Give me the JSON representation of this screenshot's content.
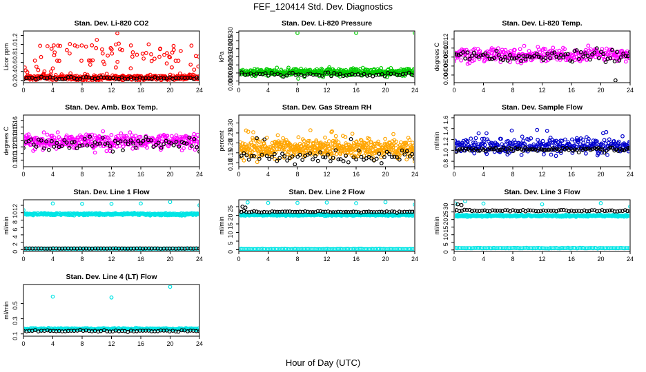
{
  "figure": {
    "title": "FEF_120414  Std. Dev. Diagnostics",
    "xlabel": "Hour of Day (UTC)"
  },
  "chart_data": [
    {
      "type": "scatter",
      "title": "Stan. Dev. Li-820 CO2",
      "ylabel": "Licor ppm",
      "xlim": [
        0,
        24
      ],
      "xticks": [
        0,
        4,
        8,
        12,
        16,
        20,
        24
      ],
      "ylim": [
        0.15,
        1.3
      ],
      "yticks": [
        "0.2",
        "0.4",
        "0.6",
        "0.8",
        "1.0",
        "1.2"
      ],
      "series": [
        {
          "color": "#ff0000",
          "gen": {
            "n": 420,
            "base": 0.26,
            "noise": 0.06,
            "spikeFrac": 0.22,
            "spikeMax": 0.75,
            "seed": 11
          },
          "points": [
            [
              12.8,
              1.25
            ],
            [
              10.0,
              1.1
            ],
            [
              12.6,
              1.0
            ],
            [
              13.0,
              1.02
            ],
            [
              7.0,
              0.98
            ],
            [
              9.9,
              0.92
            ],
            [
              11.9,
              0.92
            ],
            [
              6.3,
              0.8
            ],
            [
              2.4,
              0.72
            ],
            [
              10.8,
              0.8
            ]
          ]
        },
        {
          "color": "#000000",
          "gen": {
            "n": 60,
            "base": 0.25,
            "noise": 0.03,
            "spikeFrac": 0,
            "spikeMax": 0,
            "seed": 12
          }
        }
      ]
    },
    {
      "type": "scatter",
      "title": "Stan. Dev. Li-820 Pressure",
      "ylabel": "kPa",
      "xlim": [
        0,
        24
      ],
      "xticks": [
        0,
        4,
        8,
        12,
        16,
        20,
        24
      ],
      "ylim": [
        -0.001,
        0.031
      ],
      "yticks": [
        "0.000",
        "0.005",
        "0.010",
        "0.015",
        "0.020",
        "0.025",
        "0.030"
      ],
      "series": [
        {
          "color": "#00cc00",
          "gen": {
            "n": 420,
            "base": 0.0055,
            "noise": 0.0022,
            "spikeFrac": 0,
            "spikeMax": 0,
            "seed": 21
          },
          "points": [
            [
              8.0,
              0.0298
            ],
            [
              16.0,
              0.0298
            ],
            [
              24.0,
              0.0298
            ],
            [
              8.1,
              0.0015
            ]
          ]
        },
        {
          "color": "#000000",
          "gen": {
            "n": 60,
            "base": 0.0042,
            "noise": 0.0011,
            "spikeFrac": 0,
            "spikeMax": 0,
            "seed": 22
          }
        }
      ]
    },
    {
      "type": "scatter",
      "title": "Stan. Dev. Li-820 Temp.",
      "ylabel": "degrees C",
      "xlim": [
        0,
        24
      ],
      "xticks": [
        0,
        4,
        8,
        12,
        16,
        20,
        24
      ],
      "ylim": [
        0.0023,
        0.0138
      ],
      "yticks": [
        "0.004",
        "0.006",
        "0.008",
        "0.010",
        "0.012"
      ],
      "series": [
        {
          "color": "#ff00ff",
          "gen": {
            "n": 300,
            "base": 0.0085,
            "noise": 0.0016,
            "spikeFrac": 0,
            "spikeMax": 0,
            "seed": 31
          }
        },
        {
          "color": "#000000",
          "gen": {
            "n": 80,
            "base": 0.0082,
            "noise": 0.0014,
            "spikeFrac": 0,
            "spikeMax": 0,
            "seed": 32
          },
          "points": [
            [
              22.0,
              0.0028
            ]
          ]
        }
      ]
    },
    {
      "type": "scatter",
      "title": "Stan. Dev. Amb. Box Temp.",
      "ylabel": "degrees C",
      "xlim": [
        0,
        24
      ],
      "xticks": [
        0,
        4,
        8,
        12,
        16,
        20,
        24
      ],
      "ylim": [
        0.09,
        0.168
      ],
      "yticks": [
        "0.10",
        "0.11",
        "0.12",
        "0.13",
        "0.14",
        "0.15",
        "0.16"
      ],
      "series": [
        {
          "color": "#ff00ff",
          "gen": {
            "n": 380,
            "base": 0.128,
            "noise": 0.011,
            "spikeFrac": 0,
            "spikeMax": 0,
            "seed": 41
          }
        },
        {
          "color": "#000000",
          "gen": {
            "n": 70,
            "base": 0.124,
            "noise": 0.009,
            "spikeFrac": 0,
            "spikeMax": 0,
            "seed": 42
          }
        }
      ]
    },
    {
      "type": "scatter",
      "title": "Stan. Dev. Gas Stream RH",
      "ylabel": "percent",
      "xlim": [
        0,
        24
      ],
      "xticks": [
        0,
        4,
        8,
        12,
        16,
        20,
        24
      ],
      "ylim": [
        0.08,
        0.34
      ],
      "yticks": [
        "0.10",
        "0.15",
        "0.20",
        "0.25",
        "0.30"
      ],
      "series": [
        {
          "color": "#ffa500",
          "gen": {
            "n": 520,
            "base": 0.17,
            "noise": 0.045,
            "spikeFrac": 0.05,
            "spikeMax": 0.1,
            "seed": 51
          }
        },
        {
          "color": "#000000",
          "gen": {
            "n": 70,
            "base": 0.13,
            "noise": 0.03,
            "spikeFrac": 0.1,
            "spikeMax": 0.12,
            "seed": 52
          }
        }
      ]
    },
    {
      "type": "scatter",
      "title": "Stan. Dev. Sample Flow",
      "ylabel": "ml/min",
      "xlim": [
        0,
        24
      ],
      "xticks": [
        0,
        4,
        8,
        12,
        16,
        20,
        24
      ],
      "ylim": [
        0.7,
        1.65
      ],
      "yticks": [
        "0.8",
        "1.0",
        "1.2",
        "1.4",
        "1.6"
      ],
      "series": [
        {
          "color": "#0000cc",
          "gen": {
            "n": 340,
            "base": 1.08,
            "noise": 0.13,
            "spikeFrac": 0.06,
            "spikeMax": 0.35,
            "seed": 61
          }
        },
        {
          "color": "#000000",
          "gen": {
            "n": 90,
            "base": 1.02,
            "noise": 0.04,
            "spikeFrac": 0,
            "spikeMax": 0,
            "seed": 62
          }
        }
      ]
    },
    {
      "type": "scatter",
      "title": "Stan. Dev. Line 1 Flow",
      "ylabel": "ml/min",
      "xlim": [
        0,
        24
      ],
      "xticks": [
        0,
        4,
        8,
        12,
        16,
        20,
        24
      ],
      "ylim": [
        -0.5,
        13.5
      ],
      "yticks": [
        "0",
        "2",
        "4",
        "6",
        "8",
        "10",
        "12"
      ],
      "series": [
        {
          "color": "#00e5e5",
          "gen": {
            "n": 320,
            "base": 9.6,
            "noise": 0.3,
            "spikeFrac": 0,
            "spikeMax": 0,
            "seed": 71
          },
          "points": [
            [
              4.0,
              12.5
            ],
            [
              8.0,
              12.4
            ],
            [
              12.0,
              12.4
            ],
            [
              16.0,
              12.5
            ],
            [
              20.0,
              12.9
            ],
            [
              24.0,
              12.0
            ],
            [
              0.0,
              10.7
            ]
          ]
        },
        {
          "color": "#00e5e5",
          "gen": {
            "n": 120,
            "base": 0.25,
            "noise": 0.05,
            "spikeFrac": 0,
            "spikeMax": 0,
            "seed": 72
          }
        },
        {
          "color": "#000000",
          "gen": {
            "n": 60,
            "base": 0.3,
            "noise": 0.04,
            "spikeFrac": 0,
            "spikeMax": 0,
            "seed": 73
          }
        }
      ]
    },
    {
      "type": "scatter",
      "title": "Stan. Dev. Line 2 Flow",
      "ylabel": "ml/min",
      "xlim": [
        0,
        24
      ],
      "xticks": [
        0,
        4,
        8,
        12,
        16,
        20,
        24
      ],
      "ylim": [
        -1,
        29
      ],
      "yticks": [
        "0",
        "5",
        "10",
        "15",
        "20",
        "25"
      ],
      "series": [
        {
          "color": "#00e5e5",
          "gen": {
            "n": 320,
            "base": 20.2,
            "noise": 0.5,
            "spikeFrac": 0,
            "spikeMax": 0,
            "seed": 81
          },
          "points": [
            [
              1.2,
              27.5
            ],
            [
              4.0,
              27.2
            ],
            [
              8.0,
              27.2
            ],
            [
              12.0,
              27.4
            ],
            [
              16.0,
              27.0
            ],
            [
              20.0,
              27.6
            ],
            [
              24.0,
              26.2
            ]
          ]
        },
        {
          "color": "#00e5e5",
          "gen": {
            "n": 120,
            "base": 0.4,
            "noise": 0.1,
            "spikeFrac": 0,
            "spikeMax": 0,
            "seed": 82
          }
        },
        {
          "color": "#000000",
          "gen": {
            "n": 70,
            "base": 22.0,
            "noise": 0.4,
            "spikeFrac": 0,
            "spikeMax": 0,
            "seed": 83
          },
          "points": [
            [
              0.5,
              25.0
            ],
            [
              0.9,
              24.5
            ]
          ]
        }
      ]
    },
    {
      "type": "scatter",
      "title": "Stan. Dev. Line 3 Flow",
      "ylabel": "ml/min",
      "xlim": [
        0,
        24
      ],
      "xticks": [
        0,
        4,
        8,
        12,
        16,
        20,
        24
      ],
      "ylim": [
        -1,
        33
      ],
      "yticks": [
        "0",
        "5",
        "10",
        "15",
        "20",
        "25",
        "30"
      ],
      "series": [
        {
          "color": "#00e5e5",
          "gen": {
            "n": 320,
            "base": 22.5,
            "noise": 0.6,
            "spikeFrac": 0,
            "spikeMax": 0,
            "seed": 91
          },
          "points": [
            [
              0.2,
              30.5
            ],
            [
              1.5,
              32.0
            ],
            [
              4.0,
              30.5
            ],
            [
              12.0,
              30.0
            ],
            [
              20.0,
              30.8
            ],
            [
              24.0,
              28.5
            ]
          ]
        },
        {
          "color": "#00e5e5",
          "gen": {
            "n": 120,
            "base": 1.2,
            "noise": 0.2,
            "spikeFrac": 0,
            "spikeMax": 0,
            "seed": 92
          }
        },
        {
          "color": "#000000",
          "gen": {
            "n": 70,
            "base": 25.8,
            "noise": 0.5,
            "spikeFrac": 0,
            "spikeMax": 0,
            "seed": 93
          },
          "points": [
            [
              0.5,
              30.0
            ],
            [
              1.0,
              29.5
            ]
          ]
        }
      ]
    },
    {
      "type": "scatter",
      "title": "Stan. Dev. Line 4 (LT) Flow",
      "ylabel": "ml/min",
      "xlim": [
        0,
        24
      ],
      "xticks": [
        0,
        4,
        8,
        12,
        16,
        20,
        24
      ],
      "ylim": [
        0.07,
        0.75
      ],
      "yticks": [
        "0.1",
        "0.3",
        "0.5"
      ],
      "series": [
        {
          "color": "#00e5e5",
          "gen": {
            "n": 260,
            "base": 0.165,
            "noise": 0.012,
            "spikeFrac": 0,
            "spikeMax": 0,
            "seed": 101
          },
          "points": [
            [
              4.0,
              0.59
            ],
            [
              12.0,
              0.58
            ],
            [
              20.0,
              0.72
            ]
          ]
        },
        {
          "color": "#000000",
          "gen": {
            "n": 60,
            "base": 0.14,
            "noise": 0.01,
            "spikeFrac": 0,
            "spikeMax": 0,
            "seed": 102
          }
        }
      ]
    }
  ]
}
